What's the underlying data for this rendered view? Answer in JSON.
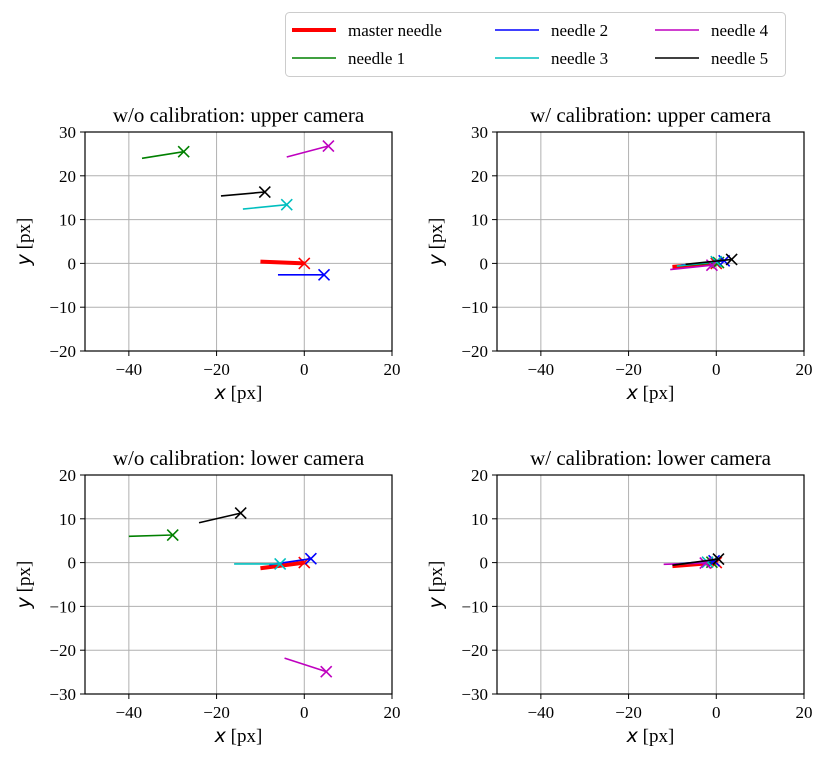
{
  "legend": {
    "columns": 3,
    "entries": [
      {
        "name": "master needle",
        "color": "#ff0000",
        "width": 4
      },
      {
        "name": "needle 1",
        "color": "#008000",
        "width": 1.6
      },
      {
        "name": "needle 2",
        "color": "#0000ff",
        "width": 1.6
      },
      {
        "name": "needle 3",
        "color": "#00bfbf",
        "width": 1.6
      },
      {
        "name": "needle 4",
        "color": "#bf00bf",
        "width": 1.6
      },
      {
        "name": "needle 5",
        "color": "#000000",
        "width": 1.6
      }
    ]
  },
  "chart_data": [
    {
      "type": "line",
      "title": "w/o calibration: upper camera",
      "xlabel_var": "x",
      "xlabel_unit": "[px]",
      "ylabel_var": "y",
      "ylabel_unit": "[px]",
      "xlim": [
        -50,
        20
      ],
      "ylim": [
        -20,
        30
      ],
      "xticks": [
        -40,
        -20,
        0,
        20
      ],
      "yticks": [
        -20,
        -10,
        0,
        10,
        20,
        30
      ],
      "grid": true,
      "series": [
        {
          "name": "master needle",
          "line": [
            [
              -10,
              0.4
            ],
            [
              0,
              0
            ]
          ],
          "marker": [
            0,
            0
          ]
        },
        {
          "name": "needle 1",
          "line": [
            [
              -37,
              24
            ],
            [
              -27.5,
              25.5
            ]
          ],
          "marker": [
            -27.5,
            25.5
          ]
        },
        {
          "name": "needle 2",
          "line": [
            [
              -6,
              -2.6
            ],
            [
              4.5,
              -2.6
            ]
          ],
          "marker": [
            4.5,
            -2.6
          ]
        },
        {
          "name": "needle 3",
          "line": [
            [
              -14,
              12.4
            ],
            [
              -4,
              13.4
            ]
          ],
          "marker": [
            -4,
            13.4
          ]
        },
        {
          "name": "needle 4",
          "line": [
            [
              -4,
              24.3
            ],
            [
              5.5,
              26.8
            ]
          ],
          "marker": [
            5.5,
            26.8
          ]
        },
        {
          "name": "needle 5",
          "line": [
            [
              -19,
              15.4
            ],
            [
              -9,
              16.3
            ]
          ],
          "marker": [
            -9,
            16.3
          ]
        }
      ]
    },
    {
      "type": "line",
      "title": "w/ calibration: upper camera",
      "xlabel_var": "x",
      "xlabel_unit": "[px]",
      "ylabel_var": "y",
      "ylabel_unit": "[px]",
      "xlim": [
        -50,
        20
      ],
      "ylim": [
        -20,
        30
      ],
      "xticks": [
        -40,
        -20,
        0,
        20
      ],
      "yticks": [
        -20,
        -10,
        0,
        10,
        20,
        30
      ],
      "grid": true,
      "series": [
        {
          "name": "master needle",
          "line": [
            [
              -10,
              -0.8
            ],
            [
              0,
              0
            ]
          ],
          "marker": [
            0,
            0
          ]
        },
        {
          "name": "needle 1",
          "line": [
            [
              -9,
              -0.6
            ],
            [
              0.5,
              0.2
            ]
          ],
          "marker": [
            0.5,
            0.2
          ]
        },
        {
          "name": "needle 2",
          "line": [
            [
              -8,
              -0.4
            ],
            [
              1.8,
              0.6
            ]
          ],
          "marker": [
            1.8,
            0.6
          ]
        },
        {
          "name": "needle 3",
          "line": [
            [
              -9,
              -0.6
            ],
            [
              0,
              0.4
            ]
          ],
          "marker": [
            0,
            0.4
          ]
        },
        {
          "name": "needle 4",
          "line": [
            [
              -10.5,
              -1.4
            ],
            [
              -1,
              -0.4
            ]
          ],
          "marker": [
            -1,
            -0.4
          ]
        },
        {
          "name": "needle 5",
          "line": [
            [
              -7,
              -0.2
            ],
            [
              3.5,
              0.9
            ]
          ],
          "marker": [
            3.5,
            0.9
          ]
        }
      ]
    },
    {
      "type": "line",
      "title": "w/o calibration: lower camera",
      "xlabel_var": "x",
      "xlabel_unit": "[px]",
      "ylabel_var": "y",
      "ylabel_unit": "[px]",
      "xlim": [
        -50,
        20
      ],
      "ylim": [
        -30,
        20
      ],
      "xticks": [
        -40,
        -20,
        0,
        20
      ],
      "yticks": [
        -30,
        -20,
        -10,
        0,
        10,
        20
      ],
      "grid": true,
      "series": [
        {
          "name": "master needle",
          "line": [
            [
              -10,
              -1.3
            ],
            [
              0,
              0
            ]
          ],
          "marker": [
            0,
            0
          ]
        },
        {
          "name": "needle 1",
          "line": [
            [
              -40,
              6
            ],
            [
              -30,
              6.3
            ]
          ],
          "marker": [
            -30,
            6.3
          ]
        },
        {
          "name": "needle 2",
          "line": [
            [
              -8,
              -0.5
            ],
            [
              1.5,
              0.9
            ]
          ],
          "marker": [
            1.5,
            0.9
          ]
        },
        {
          "name": "needle 3",
          "line": [
            [
              -16,
              -0.3
            ],
            [
              -5.5,
              -0.3
            ]
          ],
          "marker": [
            -5.5,
            -0.3
          ]
        },
        {
          "name": "needle 4",
          "line": [
            [
              -4.5,
              -21.8
            ],
            [
              5,
              -24.9
            ]
          ],
          "marker": [
            5,
            -24.9
          ]
        },
        {
          "name": "needle 5",
          "line": [
            [
              -24,
              9.1
            ],
            [
              -14.5,
              11.3
            ]
          ],
          "marker": [
            -14.5,
            11.3
          ]
        }
      ]
    },
    {
      "type": "line",
      "title": "w/ calibration: lower camera",
      "xlabel_var": "x",
      "xlabel_unit": "[px]",
      "ylabel_var": "y",
      "ylabel_unit": "[px]",
      "xlim": [
        -50,
        20
      ],
      "ylim": [
        -30,
        20
      ],
      "xticks": [
        -40,
        -20,
        0,
        20
      ],
      "yticks": [
        -30,
        -20,
        -10,
        0,
        10,
        20
      ],
      "grid": true,
      "series": [
        {
          "name": "master needle",
          "line": [
            [
              -10,
              -0.8
            ],
            [
              0,
              0
            ]
          ],
          "marker": [
            0,
            0
          ]
        },
        {
          "name": "needle 1",
          "line": [
            [
              -9,
              -0.4
            ],
            [
              -1,
              0.1
            ]
          ],
          "marker": [
            -1,
            0.1
          ]
        },
        {
          "name": "needle 2",
          "line": [
            [
              -10,
              -0.4
            ],
            [
              -0.5,
              0.4
            ]
          ],
          "marker": [
            -0.5,
            0.4
          ]
        },
        {
          "name": "needle 3",
          "line": [
            [
              -9,
              -0.3
            ],
            [
              -2,
              0.1
            ]
          ],
          "marker": [
            -2,
            0.1
          ]
        },
        {
          "name": "needle 4",
          "line": [
            [
              -12,
              -0.4
            ],
            [
              -2.5,
              -0.1
            ]
          ],
          "marker": [
            -2.5,
            -0.1
          ]
        },
        {
          "name": "needle 5",
          "line": [
            [
              -10,
              -0.6
            ],
            [
              0.5,
              0.8
            ]
          ],
          "marker": [
            0.5,
            0.8
          ]
        }
      ]
    }
  ]
}
